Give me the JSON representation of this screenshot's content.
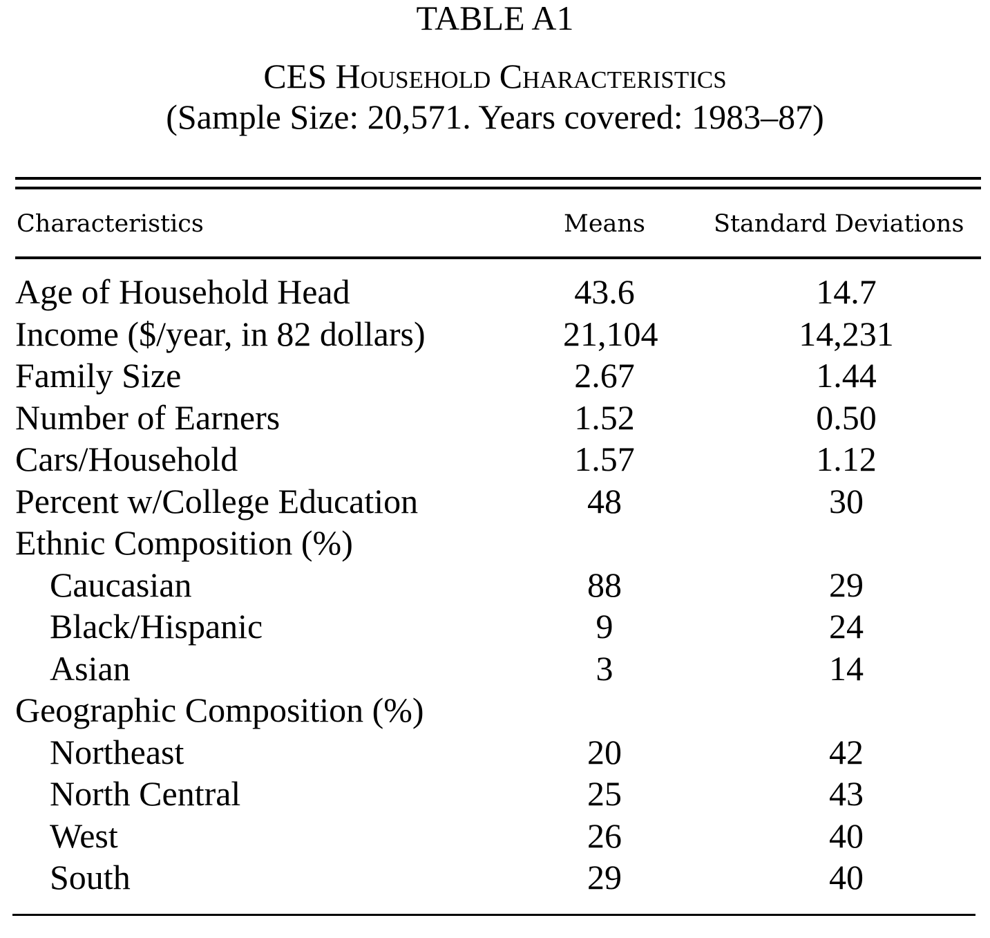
{
  "table": {
    "title": "TABLE A1",
    "subtitle": "CES Household Characteristics",
    "sample_note": "(Sample Size: 20,571. Years covered: 1983–87)",
    "columns": {
      "characteristics": "Characteristics",
      "means": "Means",
      "sd": "Standard Deviations"
    },
    "rows": [
      {
        "label": "Age of Household Head",
        "mean": "43.6",
        "sd": "14.7",
        "indent": false
      },
      {
        "label": "Income ($/year, in 82 dollars)",
        "mean": "21,104",
        "sd": "14,231",
        "indent": false
      },
      {
        "label": "Family Size",
        "mean": "2.67",
        "sd": "1.44",
        "indent": false
      },
      {
        "label": "Number of Earners",
        "mean": "1.52",
        "sd": "0.50",
        "indent": false
      },
      {
        "label": "Cars/Household",
        "mean": "1.57",
        "sd": "1.12",
        "indent": false
      },
      {
        "label": "Percent w/College Education",
        "mean": "48",
        "sd": "30",
        "indent": false
      },
      {
        "label": "Ethnic Composition (%)",
        "mean": "",
        "sd": "",
        "indent": false
      },
      {
        "label": "Caucasian",
        "mean": "88",
        "sd": "29",
        "indent": true
      },
      {
        "label": "Black/Hispanic",
        "mean": "9",
        "sd": "24",
        "indent": true
      },
      {
        "label": "Asian",
        "mean": "3",
        "sd": "14",
        "indent": true
      },
      {
        "label": "Geographic Composition (%)",
        "mean": "",
        "sd": "",
        "indent": false
      },
      {
        "label": "Northeast",
        "mean": "20",
        "sd": "42",
        "indent": true
      },
      {
        "label": "North Central",
        "mean": "25",
        "sd": "43",
        "indent": true
      },
      {
        "label": "West",
        "mean": "26",
        "sd": "40",
        "indent": true
      },
      {
        "label": "South",
        "mean": "29",
        "sd": "40",
        "indent": true
      }
    ]
  }
}
